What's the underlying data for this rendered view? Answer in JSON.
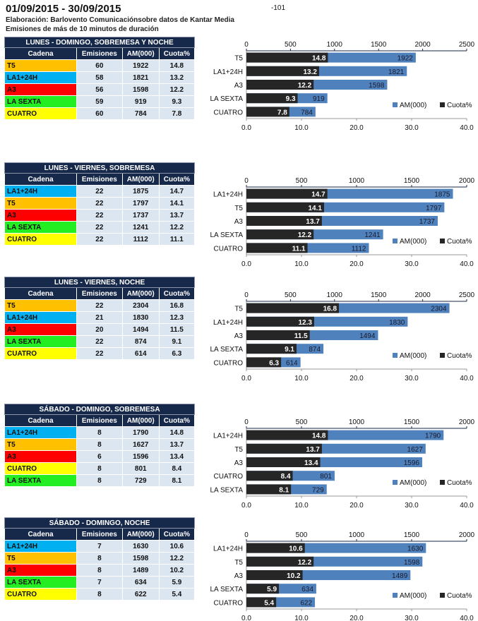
{
  "header": {
    "title": "01/09/2015 - 30/09/2015",
    "page_number": "-101",
    "source": "Elaboración: Barlovento Comunicaciónsobre datos de Kantar Media",
    "note": "Emisiones de más de 10 minutos de duración"
  },
  "columns": [
    "Cadena",
    "Emisiones",
    "AM(000)",
    "Cuota%"
  ],
  "channel_colors": {
    "T5": "#ffc000",
    "LA1+24H": "#00b0f0",
    "A3": "#ff0000",
    "LA SEXTA": "#22ee22",
    "CUATRO": "#ffff00"
  },
  "series_colors": {
    "AM(000)": "#4f81bd",
    "Cuota%": "#262626"
  },
  "chart_data": [
    {
      "type": "bar",
      "title": "LUNES - DOMINGO, SOBREMESA Y NOCHE",
      "categories": [
        "T5",
        "LA1+24H",
        "A3",
        "LA SEXTA",
        "CUATRO"
      ],
      "emisiones": [
        60,
        58,
        56,
        59,
        60
      ],
      "series": [
        {
          "name": "AM(000)",
          "values": [
            1922,
            1821,
            1598,
            919,
            784
          ],
          "axis": "top"
        },
        {
          "name": "Cuota%",
          "values": [
            14.8,
            13.2,
            12.2,
            9.3,
            7.8
          ],
          "axis": "bottom"
        }
      ],
      "top_axis": {
        "range": [
          0,
          2500
        ],
        "ticks": [
          "0",
          "500",
          "1000",
          "1500",
          "2000",
          "2500"
        ]
      },
      "bottom_axis": {
        "range": [
          0,
          40
        ],
        "ticks": [
          "0.0",
          "10.0",
          "20.0",
          "30.0",
          "40.0"
        ]
      },
      "legend": "bottom-right"
    },
    {
      "type": "bar",
      "title": "LUNES - VIERNES, SOBREMESA",
      "categories": [
        "LA1+24H",
        "T5",
        "A3",
        "LA SEXTA",
        "CUATRO"
      ],
      "emisiones": [
        22,
        22,
        22,
        22,
        22
      ],
      "series": [
        {
          "name": "AM(000)",
          "values": [
            1875,
            1797,
            1737,
            1241,
            1112
          ],
          "axis": "top"
        },
        {
          "name": "Cuota%",
          "values": [
            14.7,
            14.1,
            13.7,
            12.2,
            11.1
          ],
          "axis": "bottom"
        }
      ],
      "top_axis": {
        "range": [
          0,
          2000
        ],
        "ticks": [
          "0",
          "500",
          "1000",
          "1500",
          "2000"
        ]
      },
      "bottom_axis": {
        "range": [
          0,
          40
        ],
        "ticks": [
          "0.0",
          "10.0",
          "20.0",
          "30.0",
          "40.0"
        ]
      },
      "legend": "bottom-right"
    },
    {
      "type": "bar",
      "title": "LUNES - VIERNES, NOCHE",
      "categories": [
        "T5",
        "LA1+24H",
        "A3",
        "LA SEXTA",
        "CUATRO"
      ],
      "emisiones": [
        22,
        21,
        20,
        22,
        22
      ],
      "series": [
        {
          "name": "AM(000)",
          "values": [
            2304,
            1830,
            1494,
            874,
            614
          ],
          "axis": "top"
        },
        {
          "name": "Cuota%",
          "values": [
            16.8,
            12.3,
            11.5,
            9.1,
            6.3
          ],
          "axis": "bottom"
        }
      ],
      "top_axis": {
        "range": [
          0,
          2500
        ],
        "ticks": [
          "0",
          "500",
          "1000",
          "1500",
          "2000",
          "2500"
        ]
      },
      "bottom_axis": {
        "range": [
          0,
          40
        ],
        "ticks": [
          "0.0",
          "10.0",
          "20.0",
          "30.0",
          "40.0"
        ]
      },
      "legend": "bottom-right"
    },
    {
      "type": "bar",
      "title": "SÁBADO - DOMINGO, SOBREMESA",
      "categories": [
        "LA1+24H",
        "T5",
        "A3",
        "CUATRO",
        "LA SEXTA"
      ],
      "emisiones": [
        8,
        8,
        6,
        8,
        8
      ],
      "series": [
        {
          "name": "AM(000)",
          "values": [
            1790,
            1627,
            1596,
            801,
            729
          ],
          "axis": "top"
        },
        {
          "name": "Cuota%",
          "values": [
            14.8,
            13.7,
            13.4,
            8.4,
            8.1
          ],
          "axis": "bottom"
        }
      ],
      "top_axis": {
        "range": [
          0,
          2000
        ],
        "ticks": [
          "0",
          "500",
          "1000",
          "1500",
          "2000"
        ]
      },
      "bottom_axis": {
        "range": [
          0,
          40
        ],
        "ticks": [
          "0.0",
          "10.0",
          "20.0",
          "30.0",
          "40.0"
        ]
      },
      "legend": "bottom-right"
    },
    {
      "type": "bar",
      "title": "SÁBADO - DOMINGO, NOCHE",
      "categories": [
        "LA1+24H",
        "T5",
        "A3",
        "LA SEXTA",
        "CUATRO"
      ],
      "emisiones": [
        7,
        8,
        8,
        7,
        8
      ],
      "series": [
        {
          "name": "AM(000)",
          "values": [
            1630,
            1598,
            1489,
            634,
            622
          ],
          "axis": "top"
        },
        {
          "name": "Cuota%",
          "values": [
            10.6,
            12.2,
            10.2,
            5.9,
            5.4
          ],
          "axis": "bottom"
        }
      ],
      "top_axis": {
        "range": [
          0,
          2000
        ],
        "ticks": [
          "0",
          "500",
          "1000",
          "1500",
          "2000"
        ]
      },
      "bottom_axis": {
        "range": [
          0,
          40
        ],
        "ticks": [
          "0.0",
          "10.0",
          "20.0",
          "30.0",
          "40.0"
        ]
      },
      "legend": "bottom-right"
    }
  ]
}
